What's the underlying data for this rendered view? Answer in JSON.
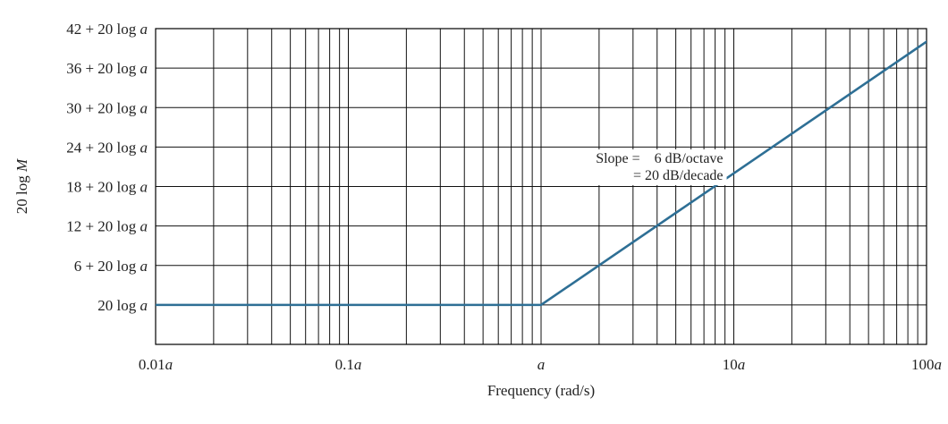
{
  "chart_data": {
    "type": "line",
    "xscale": "log",
    "xlabel": "Frequency (rad/s)",
    "ylabel": "20 log M",
    "xlim": [
      0.01,
      100
    ],
    "ylim": [
      0,
      48
    ],
    "grid": true,
    "x_ticks": [
      {
        "value": 0.01,
        "label": "0.01a"
      },
      {
        "value": 0.1,
        "label": "0.1a"
      },
      {
        "value": 1,
        "label": "a"
      },
      {
        "value": 10,
        "label": "10a"
      },
      {
        "value": 100,
        "label": "100a"
      }
    ],
    "y_ticks": [
      {
        "value": 6,
        "label": "20 log a"
      },
      {
        "value": 12,
        "label": "6 + 20 log a"
      },
      {
        "value": 18,
        "label": "12 + 20 log a"
      },
      {
        "value": 24,
        "label": "18 + 20 log a"
      },
      {
        "value": 30,
        "label": "24 + 20 log a"
      },
      {
        "value": 36,
        "label": "30 + 20 log a"
      },
      {
        "value": 42,
        "label": "36 + 20 log a"
      },
      {
        "value": 48,
        "label": "42 + 20 log a"
      }
    ],
    "series": [
      {
        "color": "#2e6f95",
        "points": [
          [
            0.01,
            6
          ],
          [
            1,
            6
          ],
          [
            120,
            47.6
          ]
        ]
      }
    ],
    "annotation": {
      "line1": "Slope =    6 dB/octave",
      "line2": "= 20 dB/decade",
      "anchor": [
        8.8,
        27.6
      ]
    }
  }
}
